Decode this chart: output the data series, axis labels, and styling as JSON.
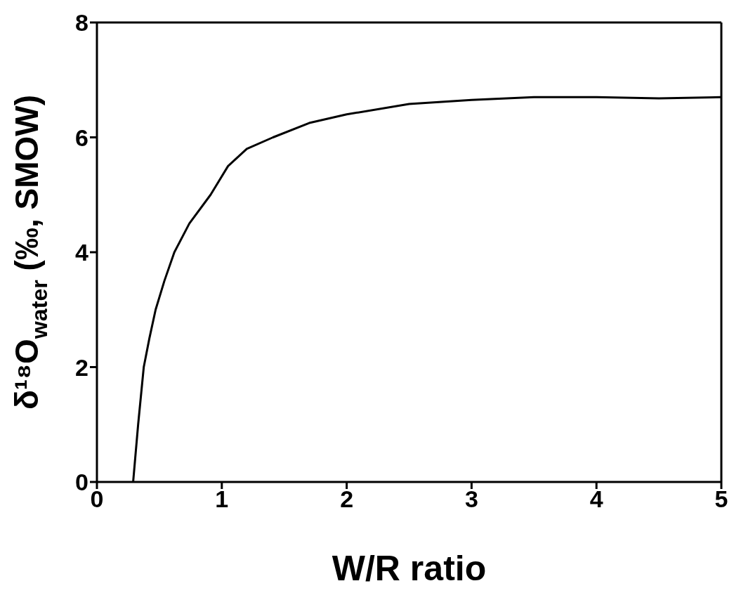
{
  "chart_data": {
    "type": "line",
    "xlabel": "W/R ratio",
    "ylabel": "δ¹⁸O$_{water}$ (‰, SMOW)",
    "series": [
      {
        "color": "#000000",
        "x": [
          0.29,
          0.33,
          0.375,
          0.42,
          0.47,
          0.54,
          0.62,
          0.74,
          0.91,
          1.05,
          1.2,
          1.41,
          1.7,
          2,
          2.5,
          3,
          3.5,
          4,
          4.5,
          5
        ],
        "values": [
          0,
          1,
          2,
          2.5,
          3,
          3.5,
          4,
          4.5,
          5,
          5.5,
          5.8,
          6,
          6.25,
          6.4,
          6.58,
          6.65,
          6.7,
          6.7,
          6.68,
          6.7
        ]
      }
    ],
    "xlim": [
      0,
      5
    ],
    "xticks": [
      0,
      1,
      2,
      3,
      4,
      5
    ],
    "ylim": [
      0,
      8
    ],
    "yticks": [
      0,
      2,
      4,
      6,
      8
    ],
    "legend": false,
    "marker": "none",
    "line_style": "solid"
  }
}
